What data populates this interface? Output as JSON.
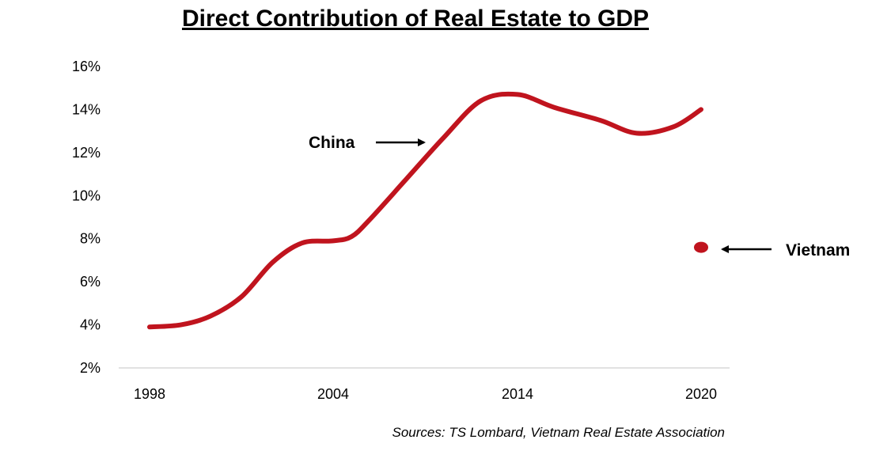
{
  "chart_data": {
    "type": "line",
    "title": "Direct Contribution of Real Estate to GDP",
    "xlabel": "",
    "ylabel": "",
    "x_ticks": [
      "1998",
      "2004",
      "2014",
      "2020"
    ],
    "y_ticks": [
      "16%",
      "14%",
      "12%",
      "10%",
      "8%",
      "6%",
      "4%",
      "2%"
    ],
    "ylim": [
      2,
      16
    ],
    "series": [
      {
        "name": "China",
        "color": "#c0141e",
        "points": [
          {
            "x": 0,
            "y": 3.9
          },
          {
            "x": 0.17,
            "y": 4.0
          },
          {
            "x": 0.33,
            "y": 4.4
          },
          {
            "x": 0.5,
            "y": 5.3
          },
          {
            "x": 0.67,
            "y": 6.9
          },
          {
            "x": 0.83,
            "y": 7.8
          },
          {
            "x": 1.0,
            "y": 7.9
          },
          {
            "x": 1.1,
            "y": 8.1
          },
          {
            "x": 1.2,
            "y": 8.9
          },
          {
            "x": 1.4,
            "y": 10.8
          },
          {
            "x": 1.6,
            "y": 12.7
          },
          {
            "x": 1.8,
            "y": 14.4
          },
          {
            "x": 2.0,
            "y": 14.7
          },
          {
            "x": 2.2,
            "y": 14.1
          },
          {
            "x": 2.45,
            "y": 13.5
          },
          {
            "x": 2.65,
            "y": 12.9
          },
          {
            "x": 2.85,
            "y": 13.2
          },
          {
            "x": 3.0,
            "y": 14.0
          }
        ]
      },
      {
        "name": "Vietnam",
        "color": "#c0141e",
        "points": [
          {
            "x": 3.0,
            "y": 7.6
          }
        ]
      }
    ],
    "annotations": [
      {
        "text": "China",
        "series": "China"
      },
      {
        "text": "Vietnam",
        "series": "Vietnam"
      }
    ],
    "source": "Sources: TS Lombard, Vietnam Real Estate Association",
    "grid": false,
    "legend": "none"
  }
}
